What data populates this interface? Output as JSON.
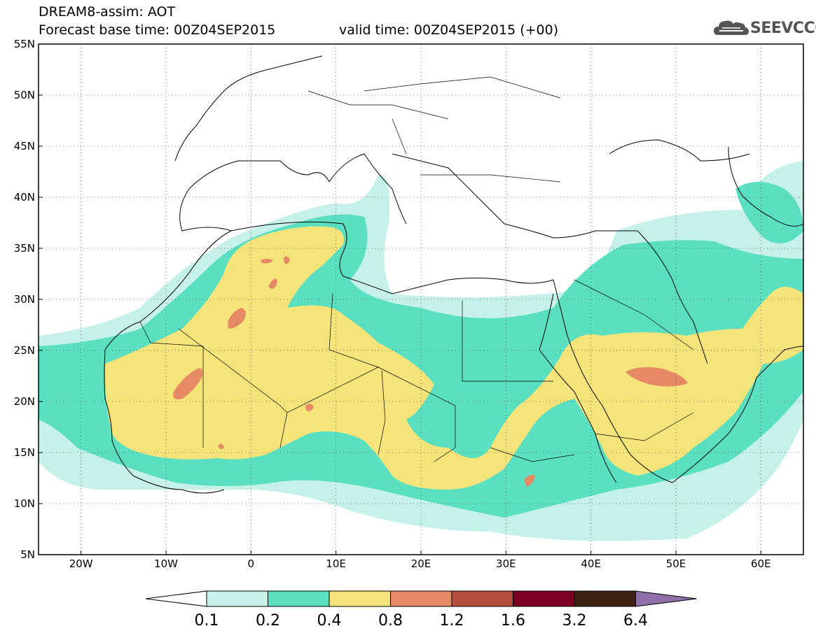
{
  "header": {
    "line1": "DREAM8-assim: AOT",
    "line2": "Forecast base time: 00Z04SEP2015",
    "line3": "valid time: 00Z04SEP2015 (+00)"
  },
  "logo": {
    "text": "SEEVCCC",
    "icon": "cloud-icon"
  },
  "map": {
    "lon_range": [
      -25,
      65
    ],
    "lat_range": [
      5,
      55
    ],
    "lon_ticks": [
      {
        "lon": -20,
        "label": "20W"
      },
      {
        "lon": -10,
        "label": "10W"
      },
      {
        "lon": 0,
        "label": "0"
      },
      {
        "lon": 10,
        "label": "10E"
      },
      {
        "lon": 20,
        "label": "20E"
      },
      {
        "lon": 30,
        "label": "30E"
      },
      {
        "lon": 40,
        "label": "40E"
      },
      {
        "lon": 50,
        "label": "50E"
      },
      {
        "lon": 60,
        "label": "60E"
      }
    ],
    "lat_ticks": [
      {
        "lat": 55,
        "label": "55N"
      },
      {
        "lat": 50,
        "label": "50N"
      },
      {
        "lat": 45,
        "label": "45N"
      },
      {
        "lat": 40,
        "label": "40N"
      },
      {
        "lat": 35,
        "label": "35N"
      },
      {
        "lat": 30,
        "label": "30N"
      },
      {
        "lat": 25,
        "label": "25N"
      },
      {
        "lat": 20,
        "label": "20N"
      },
      {
        "lat": 15,
        "label": "15N"
      },
      {
        "lat": 10,
        "label": "10N"
      },
      {
        "lat": 5,
        "label": "5N"
      }
    ],
    "grid": "dotted"
  },
  "colorbar": {
    "levels": [
      "0.1",
      "0.2",
      "0.4",
      "0.8",
      "1.2",
      "1.6",
      "3.2",
      "6.4"
    ],
    "colors": [
      "#c6f0ea",
      "#5ae0c0",
      "#f5e47a",
      "#e58a64",
      "#b34e3c",
      "#7a0024",
      "#3e2214",
      "#9070a8"
    ],
    "under_color": "#ffffff",
    "over_color": "#9070a8"
  }
}
